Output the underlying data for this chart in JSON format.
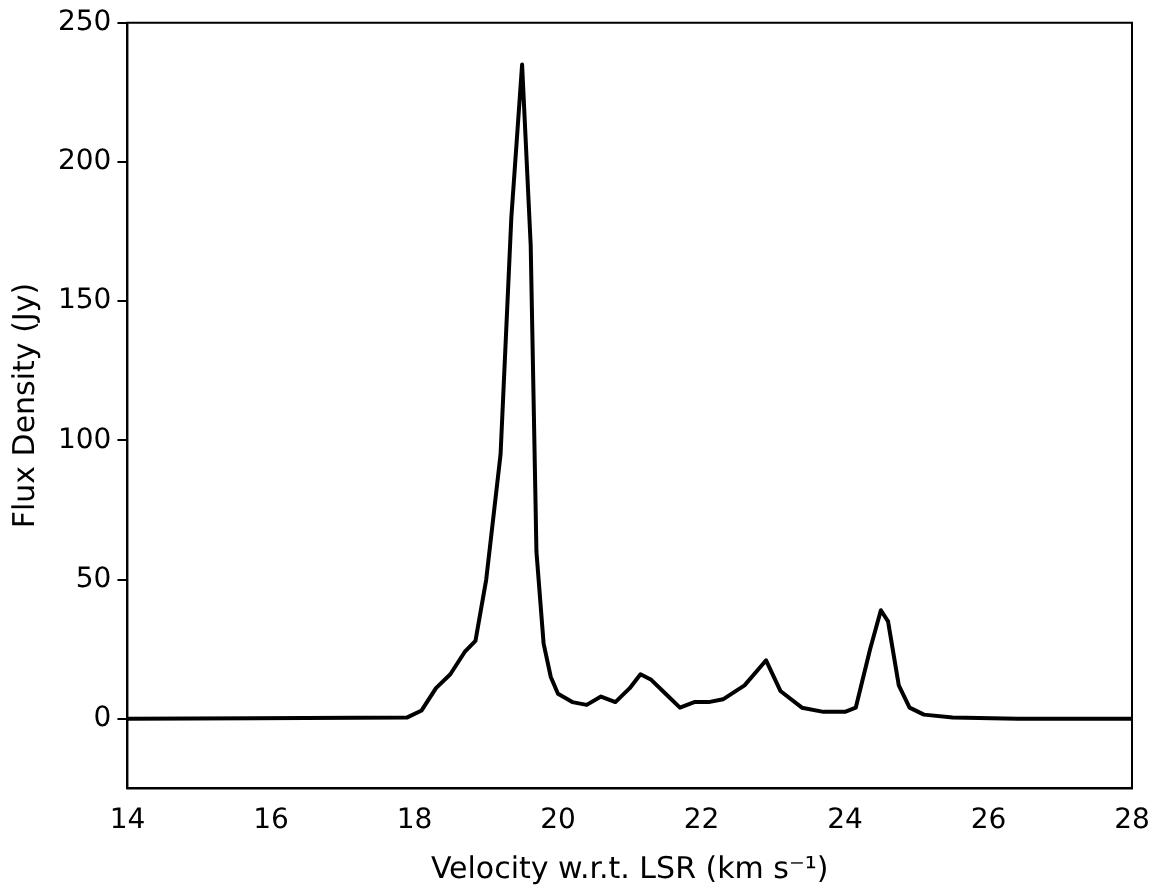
{
  "chart_data": {
    "type": "line",
    "xlabel": "Velocity w.r.t. LSR (km s⁻¹)",
    "ylabel": "Flux Density (Jy)",
    "series": [
      {
        "color": "#000000",
        "x": [
          14,
          17.9,
          18.1,
          18.3,
          18.5,
          18.7,
          18.85,
          19.0,
          19.2,
          19.35,
          19.5,
          19.62,
          19.7,
          19.8,
          19.9,
          20.0,
          20.2,
          20.4,
          20.6,
          20.8,
          21.0,
          21.15,
          21.3,
          21.5,
          21.7,
          21.9,
          22.1,
          22.3,
          22.6,
          22.9,
          23.1,
          23.4,
          23.7,
          24.0,
          24.15,
          24.35,
          24.5,
          24.6,
          24.75,
          24.9,
          25.1,
          25.5,
          26.5,
          28
        ],
        "values": [
          0,
          0.5,
          3,
          11,
          16,
          24,
          28,
          50,
          95,
          180,
          235,
          170,
          60,
          27,
          15,
          9,
          6,
          5,
          8,
          6,
          11,
          16,
          14,
          9,
          4,
          6,
          6,
          7,
          12,
          21,
          10,
          4,
          2.5,
          2.5,
          4,
          25,
          39,
          35,
          12,
          4,
          1.5,
          0.5,
          0,
          0
        ]
      }
    ],
    "xlim": [
      14,
      28
    ],
    "ylim": [
      -25,
      250
    ],
    "xticks": [
      14,
      16,
      18,
      20,
      22,
      24,
      26,
      28
    ],
    "yticks": [
      0,
      50,
      100,
      150,
      200,
      250
    ],
    "grid": false,
    "legend": false,
    "marker": "none",
    "line_style": "solid"
  }
}
